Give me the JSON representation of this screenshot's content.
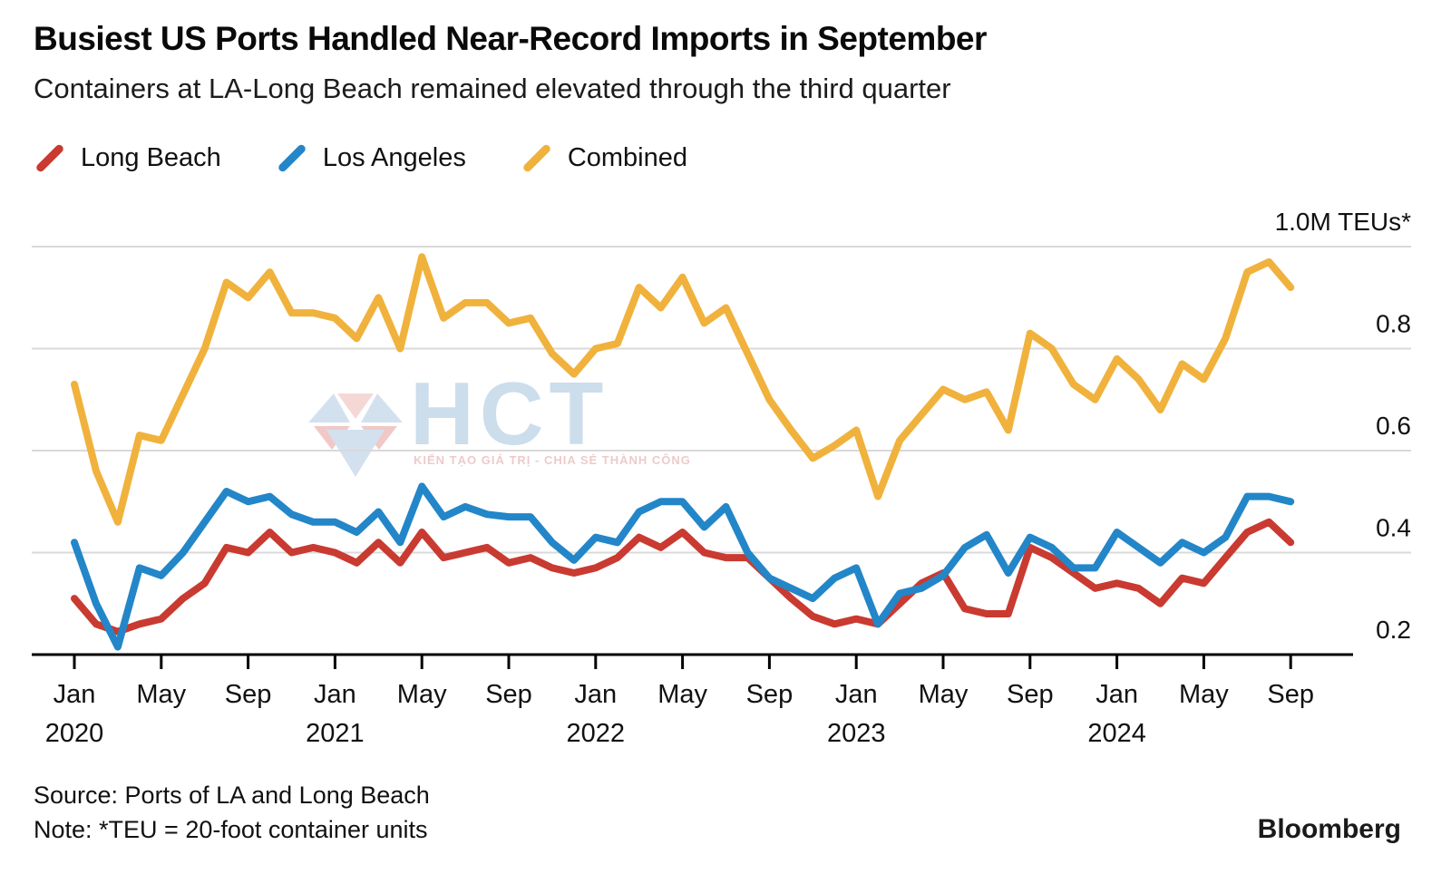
{
  "header": {
    "title": "Busiest US Ports Handled Near-Record Imports in September",
    "subtitle": "Containers at LA-Long Beach remained elevated through the third quarter"
  },
  "legend": [
    {
      "label": "Long Beach",
      "color": "#C93A31"
    },
    {
      "label": "Los Angeles",
      "color": "#2386C8"
    },
    {
      "label": "Combined",
      "color": "#F0B23C"
    }
  ],
  "chart_data": {
    "type": "line",
    "title": "Busiest US Ports Handled Near-Record Imports in September",
    "subtitle": "Containers at LA-Long Beach remained elevated through the third quarter",
    "unit_label": "1.0M TEUs*",
    "ylim": [
      0.2,
      1.0
    ],
    "grid": "horizontal",
    "legend_position": "top-left",
    "x": [
      "Jan 2020",
      "Feb 2020",
      "Mar 2020",
      "Apr 2020",
      "May 2020",
      "Jun 2020",
      "Jul 2020",
      "Aug 2020",
      "Sep 2020",
      "Oct 2020",
      "Nov 2020",
      "Dec 2020",
      "Jan 2021",
      "Feb 2021",
      "Mar 2021",
      "Apr 2021",
      "May 2021",
      "Jun 2021",
      "Jul 2021",
      "Aug 2021",
      "Sep 2021",
      "Oct 2021",
      "Nov 2021",
      "Dec 2021",
      "Jan 2022",
      "Feb 2022",
      "Mar 2022",
      "Apr 2022",
      "May 2022",
      "Jun 2022",
      "Jul 2022",
      "Aug 2022",
      "Sep 2022",
      "Oct 2022",
      "Nov 2022",
      "Dec 2022",
      "Jan 2023",
      "Feb 2023",
      "Mar 2023",
      "Apr 2023",
      "May 2023",
      "Jun 2023",
      "Jul 2023",
      "Aug 2023",
      "Sep 2023",
      "Oct 2023",
      "Nov 2023",
      "Dec 2023",
      "Jan 2024",
      "Feb 2024",
      "Mar 2024",
      "Apr 2024",
      "May 2024",
      "Jun 2024",
      "Jul 2024",
      "Aug 2024",
      "Sep 2024"
    ],
    "series": [
      {
        "name": "Long Beach",
        "color": "#C93A31",
        "values": [
          0.31,
          0.26,
          0.245,
          0.26,
          0.27,
          0.31,
          0.34,
          0.41,
          0.4,
          0.44,
          0.4,
          0.41,
          0.4,
          0.38,
          0.42,
          0.38,
          0.44,
          0.39,
          0.4,
          0.41,
          0.38,
          0.39,
          0.37,
          0.36,
          0.37,
          0.39,
          0.43,
          0.41,
          0.44,
          0.4,
          0.39,
          0.39,
          0.35,
          0.31,
          0.275,
          0.26,
          0.27,
          0.26,
          0.3,
          0.34,
          0.36,
          0.29,
          0.28,
          0.28,
          0.41,
          0.39,
          0.36,
          0.33,
          0.34,
          0.33,
          0.3,
          0.35,
          0.34,
          0.39,
          0.44,
          0.46,
          0.42
        ]
      },
      {
        "name": "Los Angeles",
        "color": "#2386C8",
        "values": [
          0.42,
          0.3,
          0.215,
          0.37,
          0.355,
          0.4,
          0.46,
          0.52,
          0.5,
          0.51,
          0.475,
          0.46,
          0.46,
          0.44,
          0.48,
          0.42,
          0.53,
          0.47,
          0.49,
          0.475,
          0.47,
          0.47,
          0.42,
          0.385,
          0.43,
          0.42,
          0.48,
          0.5,
          0.5,
          0.45,
          0.49,
          0.4,
          0.35,
          0.33,
          0.31,
          0.35,
          0.37,
          0.26,
          0.32,
          0.33,
          0.355,
          0.41,
          0.435,
          0.36,
          0.43,
          0.41,
          0.37,
          0.37,
          0.44,
          0.41,
          0.38,
          0.42,
          0.4,
          0.43,
          0.51,
          0.51,
          0.5
        ]
      },
      {
        "name": "Combined",
        "color": "#F0B23C",
        "values": [
          0.73,
          0.56,
          0.46,
          0.63,
          0.62,
          0.71,
          0.8,
          0.93,
          0.9,
          0.95,
          0.87,
          0.87,
          0.86,
          0.82,
          0.9,
          0.8,
          0.98,
          0.86,
          0.89,
          0.89,
          0.85,
          0.86,
          0.79,
          0.75,
          0.8,
          0.81,
          0.92,
          0.88,
          0.94,
          0.85,
          0.88,
          0.79,
          0.7,
          0.64,
          0.585,
          0.61,
          0.64,
          0.51,
          0.62,
          0.67,
          0.72,
          0.7,
          0.715,
          0.64,
          0.83,
          0.8,
          0.73,
          0.7,
          0.78,
          0.74,
          0.68,
          0.77,
          0.74,
          0.82,
          0.95,
          0.97,
          0.92
        ]
      }
    ],
    "y_ticks": [
      {
        "v": 1.0,
        "label": "1.0M TEUs*"
      },
      {
        "v": 0.8,
        "label": "0.8"
      },
      {
        "v": 0.6,
        "label": "0.6"
      },
      {
        "v": 0.4,
        "label": "0.4"
      },
      {
        "v": 0.2,
        "label": "0.2"
      }
    ],
    "x_ticks": [
      {
        "i": 0,
        "month": "Jan",
        "year": "2020"
      },
      {
        "i": 4,
        "month": "May"
      },
      {
        "i": 8,
        "month": "Sep"
      },
      {
        "i": 12,
        "month": "Jan",
        "year": "2021"
      },
      {
        "i": 16,
        "month": "May"
      },
      {
        "i": 20,
        "month": "Sep"
      },
      {
        "i": 24,
        "month": "Jan",
        "year": "2022"
      },
      {
        "i": 28,
        "month": "May"
      },
      {
        "i": 32,
        "month": "Sep"
      },
      {
        "i": 36,
        "month": "Jan",
        "year": "2023"
      },
      {
        "i": 40,
        "month": "May"
      },
      {
        "i": 44,
        "month": "Sep"
      },
      {
        "i": 48,
        "month": "Jan",
        "year": "2024"
      },
      {
        "i": 52,
        "month": "May"
      },
      {
        "i": 56,
        "month": "Sep"
      }
    ]
  },
  "watermark": {
    "text": "HCT",
    "tagline": "KIẾN TẠO GIÁ TRỊ - CHIA SẺ THÀNH CÔNG"
  },
  "footer": {
    "source": "Source: Ports of LA and Long Beach",
    "note": "Note: *TEU = 20-foot container units",
    "brand": "Bloomberg"
  }
}
